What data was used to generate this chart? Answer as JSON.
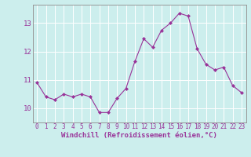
{
  "x": [
    0,
    1,
    2,
    3,
    4,
    5,
    6,
    7,
    8,
    9,
    10,
    11,
    12,
    13,
    14,
    15,
    16,
    17,
    18,
    19,
    20,
    21,
    22,
    23
  ],
  "y": [
    10.9,
    10.4,
    10.3,
    10.5,
    10.4,
    10.5,
    10.4,
    9.85,
    9.85,
    10.35,
    10.7,
    11.65,
    12.45,
    12.15,
    12.75,
    13.0,
    13.35,
    13.25,
    12.1,
    11.55,
    11.35,
    11.45,
    10.8,
    10.55
  ],
  "line_color": "#993399",
  "marker": "D",
  "markersize": 2.0,
  "linewidth": 0.8,
  "bg_color": "#cceeed",
  "grid_color": "#ffffff",
  "spine_color": "#999999",
  "tick_label_color": "#993399",
  "axis_label_color": "#993399",
  "xlabel": "Windchill (Refroidissement éolien,°C)",
  "xlabel_fontsize": 6.5,
  "tick_fontsize": 5.5,
  "ytick_fontsize": 6.5,
  "ylim": [
    9.5,
    13.65
  ],
  "yticks": [
    10,
    11,
    12,
    13
  ],
  "xlim": [
    -0.5,
    23.5
  ],
  "xticks": [
    0,
    1,
    2,
    3,
    4,
    5,
    6,
    7,
    8,
    9,
    10,
    11,
    12,
    13,
    14,
    15,
    16,
    17,
    18,
    19,
    20,
    21,
    22,
    23
  ]
}
